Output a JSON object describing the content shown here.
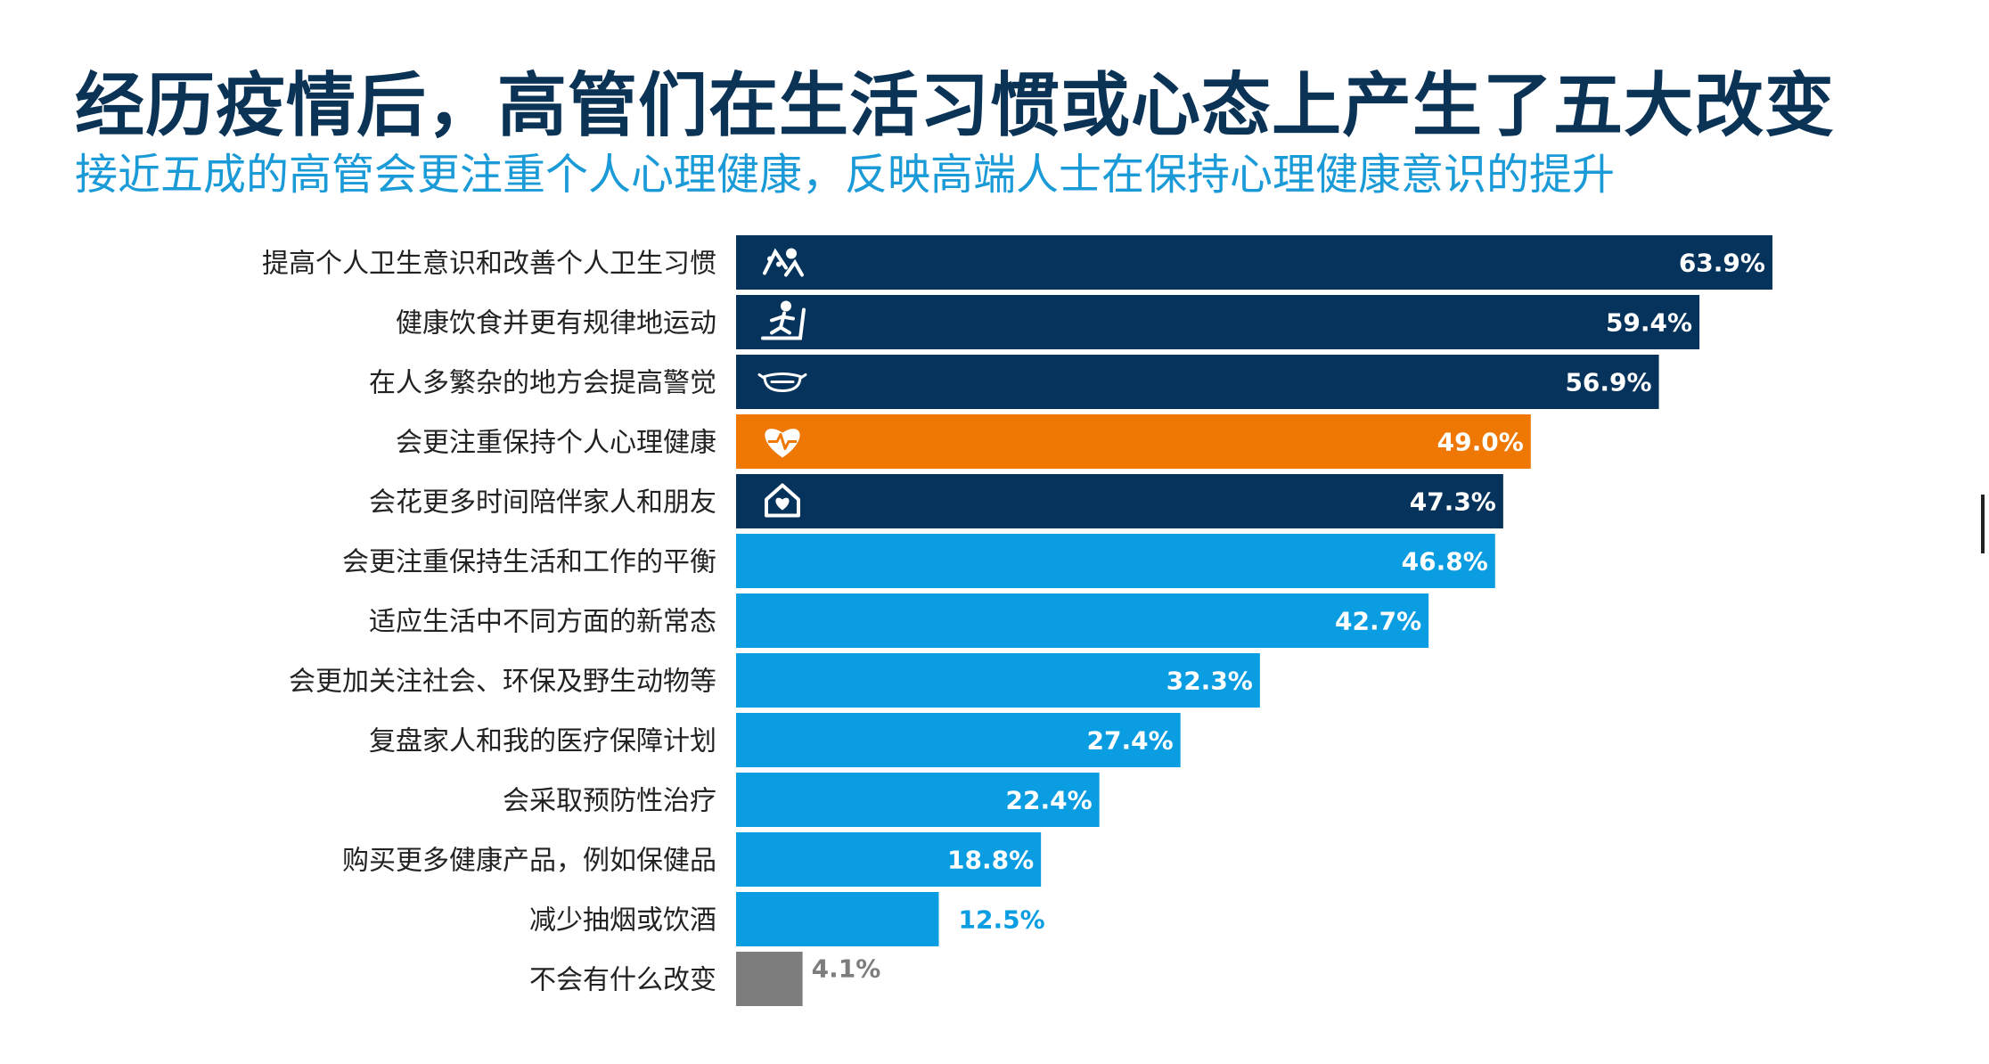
{
  "title": "经历疫情后，高管们在生活习惯或心态上产生了五大改变",
  "subtitle": "接近五成的高管会更注重个人心理健康，反映高端人士在保持心理健康意识的提升",
  "colors": {
    "dark_navy": "#05335b",
    "orange": "#ef7805",
    "light_blue": "#0a9de2",
    "gray": "#7d7d7d",
    "label_text": "#222222",
    "white": "#ffffff"
  },
  "chart_data": {
    "type": "bar",
    "orientation": "horizontal",
    "categories": [
      "提高个人卫生意识和改善个人卫生习惯",
      "健康饮食并更有规律地运动",
      "在人多繁杂的地方会提高警觉",
      "会更注重保持个人心理健康",
      "会花更多时间陪伴家人和朋友",
      "会更注重保持生活和工作的平衡",
      "适应生活中不同方面的新常态",
      "会更加关注社会、环保及野生动物等",
      "复盘家人和我的医疗保障计划",
      "会采取预防性治疗",
      "购买更多健康产品，例如保健品",
      "减少抽烟或饮酒",
      "不会有什么改变"
    ],
    "values": [
      63.9,
      59.4,
      56.9,
      49.0,
      47.3,
      46.8,
      42.7,
      32.3,
      27.4,
      22.4,
      18.8,
      12.5,
      4.1
    ],
    "value_labels": [
      "63.9%",
      "59.4%",
      "56.9%",
      "49.0%",
      "47.3%",
      "46.8%",
      "42.7%",
      "32.3%",
      "27.4%",
      "22.4%",
      "18.8%",
      "12.5%",
      "4.1%"
    ],
    "bar_colors": [
      "dark_navy",
      "dark_navy",
      "dark_navy",
      "orange",
      "dark_navy",
      "light_blue",
      "light_blue",
      "light_blue",
      "light_blue",
      "light_blue",
      "light_blue",
      "light_blue",
      "gray"
    ],
    "icons": [
      "hygiene-icon",
      "treadmill-icon",
      "mask-icon",
      "heart-icon",
      "home-icon",
      null,
      null,
      null,
      null,
      null,
      null,
      null,
      null
    ],
    "value_unit": "%",
    "grid": false,
    "legend": "none"
  }
}
